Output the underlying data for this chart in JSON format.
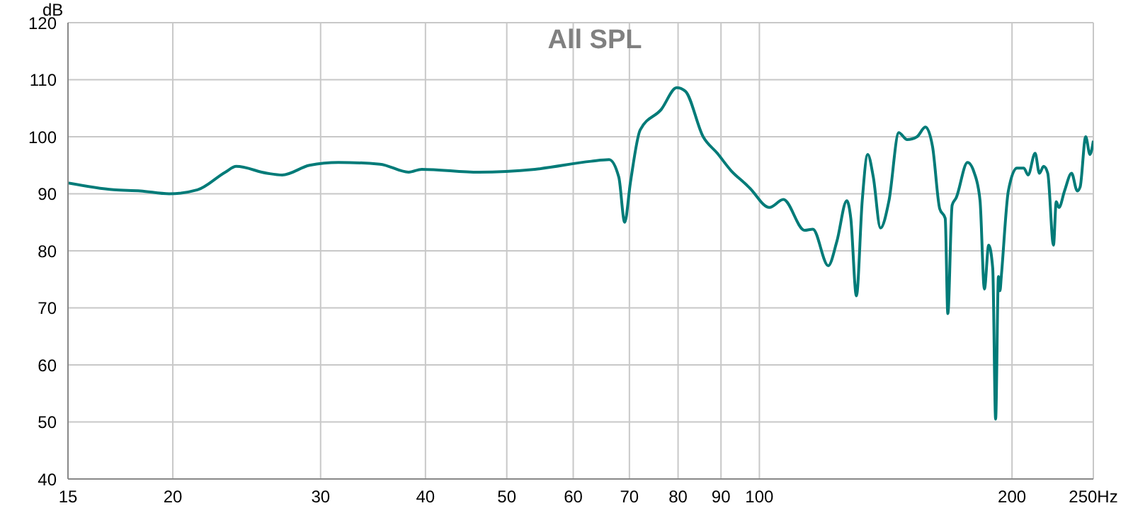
{
  "chart_data": {
    "type": "line",
    "title": "All SPL",
    "ylabel": "dB",
    "x": [
      15,
      17,
      18.3,
      19.8,
      21.4,
      23.1,
      23.8,
      25.9,
      27,
      29.1,
      31.5,
      35.3,
      38.2,
      39.6,
      46.3,
      54,
      63,
      66.2,
      68,
      69.1,
      70.2,
      72.1,
      76.4,
      79.7,
      81.6,
      85.7,
      89.1,
      92.6,
      96.3,
      97.4,
      102.8,
      106.8,
      113.2,
      115.8,
      120.8,
      123.7,
      127.1,
      128.5,
      130.5,
      132.6,
      134.6,
      136.7,
      139.4,
      142.7,
      146.6,
      150,
      154.1,
      157.7,
      160.8,
      164,
      166.5,
      167.7,
      169.7,
      171.6,
      177,
      180.4,
      183.2,
      185.4,
      187.6,
      189.7,
      191.2,
      192.7,
      193.5,
      194.2,
      198,
      202.7,
      206.6,
      209,
      213.1,
      215.6,
      218.1,
      220.6,
      224.1,
      225.8,
      227.5,
      231,
      235.5,
      239.2,
      241.1,
      244.8,
      247.7,
      250
    ],
    "series": [
      {
        "color": "#007b78",
        "values": [
          91.9,
          90.7,
          90.5,
          90,
          90.7,
          93.8,
          94.8,
          93.6,
          93.3,
          95,
          95.5,
          95.2,
          93.8,
          94.3,
          93.8,
          94.3,
          95.7,
          96,
          92.9,
          85,
          92,
          101.2,
          104.8,
          108.6,
          108,
          100,
          97.1,
          94,
          91.7,
          91,
          87.6,
          89,
          83.6,
          83.8,
          77.4,
          81.7,
          88.8,
          85.7,
          72.1,
          88.8,
          96.9,
          92.9,
          84,
          88.8,
          100.7,
          99.5,
          100,
          101.7,
          98.3,
          87.4,
          85.7,
          69,
          88,
          89.3,
          95.5,
          93.6,
          88.8,
          73.3,
          81,
          76.9,
          50.5,
          75.5,
          73,
          75.5,
          90.5,
          94.5,
          94.5,
          93.3,
          97.1,
          93.6,
          94.8,
          93.6,
          81,
          88.6,
          87.6,
          90.5,
          93.6,
          90.5,
          91.2,
          100,
          96.9,
          99.3
        ]
      }
    ],
    "log": "x",
    "xlim": [
      15,
      250
    ],
    "xticks": [
      15,
      20,
      30,
      40,
      50,
      60,
      70,
      80,
      90,
      100,
      200,
      {
        "value": 250,
        "label": "250Hz"
      }
    ],
    "ylim": [
      40,
      120
    ],
    "yticks": [
      40,
      50,
      60,
      70,
      80,
      90,
      100,
      110,
      120
    ],
    "grid": true,
    "marker": "none",
    "line_style": "solid"
  }
}
